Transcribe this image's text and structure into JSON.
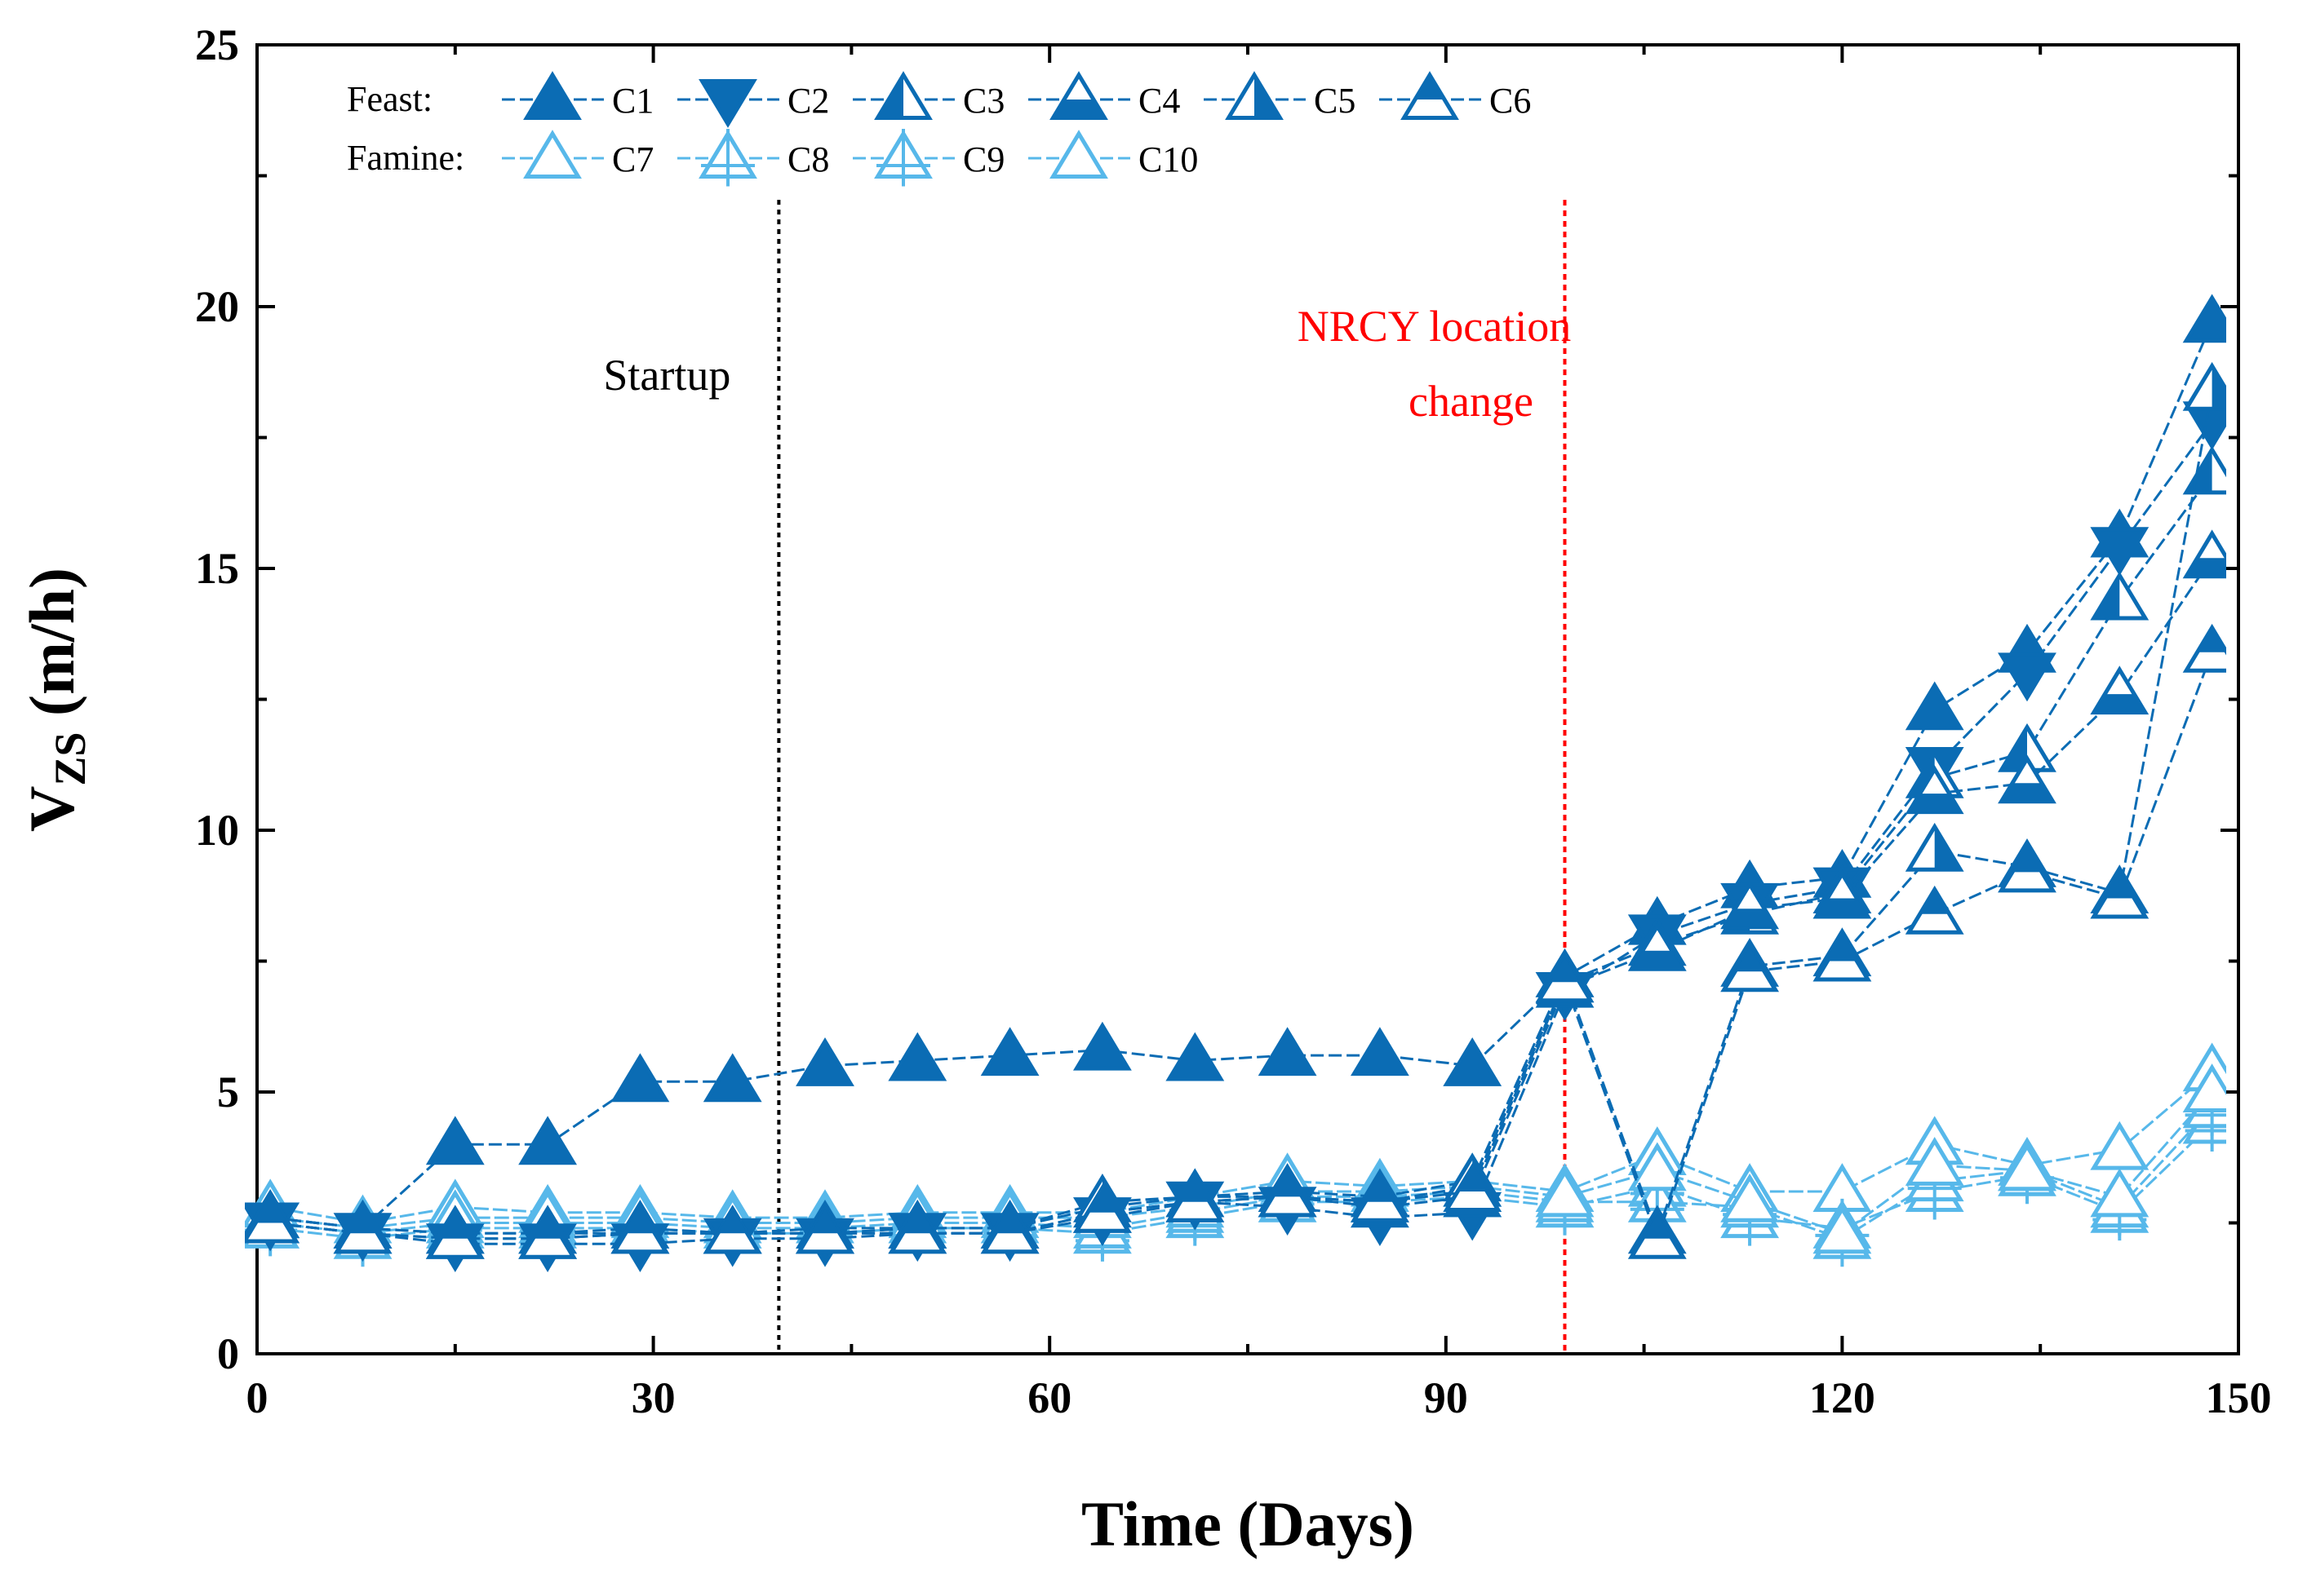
{
  "chart_data": {
    "type": "line",
    "xlabel": "Time (Days)",
    "ylabel_main": "V",
    "ylabel_sub": "ZS",
    "ylabel_unit": " (m/h)",
    "xlim": [
      0,
      150
    ],
    "ylim": [
      0,
      25
    ],
    "xticks": [
      0,
      30,
      60,
      90,
      120,
      150
    ],
    "yticks": [
      0,
      5,
      10,
      15,
      20,
      25
    ],
    "legend": {
      "position": "top-left",
      "feast_label": "Feast:",
      "famine_label": "Famine:"
    },
    "annotations": {
      "startup": {
        "label": "Startup",
        "x": 39.5,
        "color": "#000000"
      },
      "nrcy": {
        "label_line1": "NRCY location",
        "label_line2": "change",
        "x": 99,
        "color": "#ff0000"
      }
    },
    "colors": {
      "feast": "#0b6cb4",
      "famine": "#57b8ea"
    },
    "x": [
      1,
      8,
      15,
      22,
      29,
      36,
      43,
      50,
      57,
      64,
      71,
      78,
      85,
      92,
      99,
      106,
      113,
      120,
      127,
      134,
      141,
      148
    ],
    "series": [
      {
        "name": "C1",
        "group": "feast",
        "marker": "up-filled",
        "values": [
          2.6,
          2.4,
          4.0,
          4.0,
          5.2,
          5.2,
          5.5,
          5.6,
          5.7,
          5.8,
          5.6,
          5.7,
          5.7,
          5.5,
          7.2,
          8.2,
          8.9,
          9.1,
          12.3,
          13.4,
          15.6,
          19.7
        ]
      },
      {
        "name": "C2",
        "group": "feast",
        "marker": "down-filled",
        "values": [
          2.5,
          2.3,
          2.1,
          2.1,
          2.1,
          2.2,
          2.2,
          2.3,
          2.3,
          2.6,
          2.9,
          2.8,
          2.6,
          2.7,
          6.9,
          8.0,
          8.6,
          8.9,
          11.2,
          13.0,
          15.4,
          17.8
        ]
      },
      {
        "name": "C3",
        "group": "feast",
        "marker": "up-half-left",
        "values": [
          2.6,
          2.4,
          2.3,
          2.3,
          2.4,
          2.3,
          2.4,
          2.4,
          2.4,
          2.8,
          3.0,
          3.0,
          2.9,
          3.2,
          7.1,
          7.8,
          8.4,
          8.8,
          11.0,
          11.5,
          14.4,
          16.8
        ]
      },
      {
        "name": "C4",
        "group": "feast",
        "marker": "up-half-bottom",
        "values": [
          2.5,
          2.3,
          2.2,
          2.2,
          2.3,
          2.3,
          2.3,
          2.3,
          2.3,
          2.7,
          2.9,
          3.0,
          2.8,
          3.0,
          7.0,
          7.7,
          8.5,
          8.7,
          10.7,
          10.9,
          12.6,
          15.2
        ]
      },
      {
        "name": "C5",
        "group": "feast",
        "marker": "up-half-right",
        "values": [
          2.6,
          2.4,
          2.3,
          2.3,
          2.3,
          2.3,
          2.3,
          2.4,
          2.4,
          2.9,
          3.0,
          3.1,
          3.0,
          3.3,
          7.2,
          2.3,
          7.4,
          7.6,
          9.6,
          9.3,
          8.8,
          18.4
        ]
      },
      {
        "name": "C6",
        "group": "feast",
        "marker": "up-half-top",
        "values": [
          2.5,
          2.3,
          2.2,
          2.2,
          2.3,
          2.3,
          2.3,
          2.3,
          2.3,
          2.7,
          2.9,
          3.0,
          2.9,
          3.1,
          7.1,
          2.2,
          7.3,
          7.5,
          8.4,
          9.2,
          8.7,
          13.4
        ]
      },
      {
        "name": "C7",
        "group": "famine",
        "marker": "up-open",
        "values": [
          2.8,
          2.5,
          2.8,
          2.7,
          2.7,
          2.6,
          2.6,
          2.7,
          2.7,
          2.7,
          3.0,
          3.3,
          3.2,
          3.3,
          3.1,
          3.8,
          3.1,
          3.1,
          4.0,
          3.6,
          3.9,
          5.4
        ]
      },
      {
        "name": "C8",
        "group": "famine",
        "marker": "up-cross",
        "values": [
          2.4,
          2.2,
          2.4,
          2.4,
          2.4,
          2.3,
          2.3,
          2.4,
          2.4,
          2.3,
          2.6,
          2.9,
          2.9,
          3.0,
          2.8,
          3.2,
          2.6,
          2.4,
          3.1,
          3.4,
          2.7,
          4.4
        ]
      },
      {
        "name": "C9",
        "group": "famine",
        "marker": "up-cross",
        "values": [
          2.5,
          2.3,
          2.5,
          2.5,
          2.5,
          2.4,
          2.4,
          2.5,
          2.5,
          2.4,
          2.7,
          3.0,
          3.0,
          3.1,
          2.9,
          2.9,
          2.8,
          2.2,
          3.3,
          3.5,
          2.8,
          4.7
        ]
      },
      {
        "name": "C10",
        "group": "famine",
        "marker": "up-open",
        "values": [
          2.6,
          2.4,
          2.6,
          2.6,
          2.6,
          2.5,
          2.5,
          2.6,
          2.6,
          2.6,
          2.8,
          3.1,
          3.1,
          3.2,
          3.0,
          3.5,
          2.9,
          2.3,
          3.6,
          3.5,
          3.0,
          5.0
        ]
      }
    ]
  }
}
